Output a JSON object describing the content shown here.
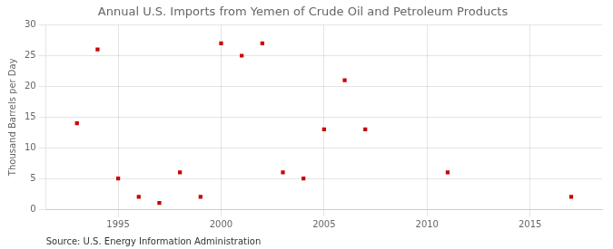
{
  "chart_data": {
    "type": "scatter",
    "title": "Annual U.S. Imports from Yemen of Crude Oil and Petroleum Products",
    "ylabel": "Thousand Barrels per Day",
    "annotation": "Source: U.S. Energy Information Administration",
    "x": [
      1993,
      1994,
      1995,
      1996,
      1997,
      1998,
      1999,
      2000,
      2001,
      2002,
      2003,
      2004,
      2005,
      2006,
      2007,
      2011,
      2017
    ],
    "values": [
      14,
      26,
      5,
      2,
      1,
      6,
      2,
      27,
      25,
      27,
      6,
      5,
      13,
      21,
      13,
      6,
      2
    ],
    "color": "#cc0000",
    "marker": "square",
    "xlim": [
      1991.5,
      2018.5
    ],
    "xticks": [
      1995,
      2000,
      2005,
      2010,
      2015
    ],
    "ylim": [
      0,
      30
    ],
    "yticks": [
      0,
      5,
      10,
      15,
      20,
      25,
      30
    ],
    "grid": true
  }
}
